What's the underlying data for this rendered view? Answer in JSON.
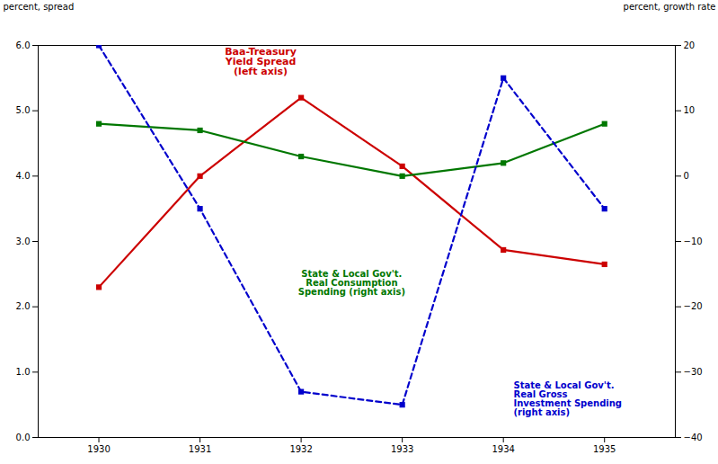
{
  "chart_data": {
    "type": "line",
    "x": [
      1930,
      1931,
      1932,
      1933,
      1934,
      1935
    ],
    "xlim": [
      1929.4,
      1935.7
    ],
    "xticks": [
      1930,
      1931,
      1932,
      1933,
      1934,
      1935
    ],
    "ylim": [
      0,
      6
    ],
    "yticks": [
      0,
      1,
      2,
      3,
      4,
      5,
      6
    ],
    "y2lim": [
      -40,
      20
    ],
    "y2ticks": [
      -40,
      -30,
      -20,
      -10,
      0,
      10,
      20
    ],
    "ylabel": "percent, spread",
    "y2label": "percent, growth rate",
    "grid": false,
    "series": [
      {
        "name": "Baa-Treasury\nYield Spread\n(left axis)",
        "color": "#cc0000",
        "marker": "square",
        "line_style": "solid",
        "values": [
          2.3,
          4.0,
          5.2,
          4.15,
          2.87,
          2.65
        ]
      },
      {
        "name": "State & Local Gov't.\nReal Consumption\nSpending (right axis)",
        "color": "#007700",
        "marker": "square",
        "line_style": "solid",
        "axis": "y2",
        "values": [
          8.0,
          7.0,
          3.0,
          0.0,
          2.0,
          8.0
        ]
      },
      {
        "name": "State & Local Gov't.\nReal Gross\nInvestment Spending\n(right axis)",
        "color": "#0000cc",
        "marker": "square",
        "line_style": "dashed",
        "axis": "y2",
        "values": [
          20.0,
          -5.0,
          -33.0,
          -35.0,
          15.0,
          -5.0
        ]
      }
    ]
  }
}
